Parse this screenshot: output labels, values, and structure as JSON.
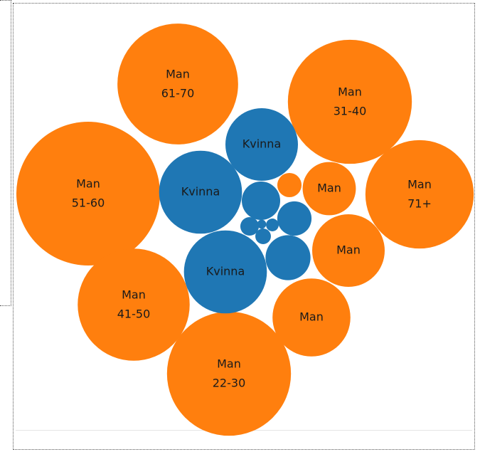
{
  "chart_data": {
    "type": "bubble",
    "series": [
      {
        "color": "#ff7f0e",
        "values": [
          72,
          76,
          102,
          58,
          62,
          76,
          14,
          26,
          30,
          2.9
        ],
        "labels": [
          "Man",
          "Man",
          "Man",
          "Man",
          "Man",
          "Man",
          "Man",
          "Man",
          "Man",
          null
        ],
        "sublabels": [
          "61-70",
          "31-40",
          "51-60",
          "71+",
          "41-50",
          "22-30",
          null,
          null,
          null,
          null
        ]
      },
      {
        "color": "#1f77b4",
        "values": [
          26,
          34,
          34,
          7.3,
          5.8,
          10,
          1.7,
          1.2,
          0.8,
          0.4
        ],
        "labels": [
          "Kvinna",
          "Kvinna",
          "Kvinna",
          null,
          null,
          null,
          null,
          null,
          null,
          null
        ],
        "sublabels": [
          null,
          null,
          null,
          null,
          null,
          null,
          null,
          null,
          null,
          null
        ]
      }
    ]
  }
}
